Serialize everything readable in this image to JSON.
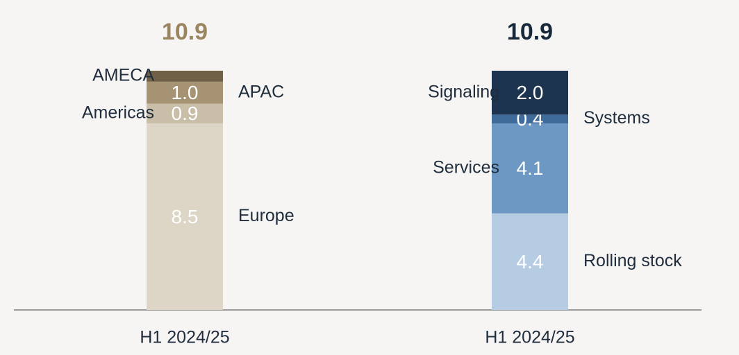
{
  "chart_data": [
    {
      "type": "bar",
      "stacked": true,
      "title": "10.9",
      "title_color": "#9b8561",
      "categories": [
        "H1 2024/25"
      ],
      "ylim": [
        0,
        10.9
      ],
      "series": [
        {
          "name": "Europe",
          "color": "#ddd5c6",
          "values": [
            8.5
          ],
          "value_labels": [
            "8.5"
          ]
        },
        {
          "name": "Americas",
          "color": "#c9bea7",
          "values": [
            0.9
          ],
          "value_labels": [
            "0.9"
          ]
        },
        {
          "name": "APAC",
          "color": "#a69373",
          "values": [
            1.0
          ],
          "value_labels": [
            "1.0"
          ]
        },
        {
          "name": "AMECA",
          "color": "#6f6047",
          "values": [
            0.5
          ]
        }
      ]
    },
    {
      "type": "bar",
      "stacked": true,
      "title": "10.9",
      "title_color": "#17283a",
      "categories": [
        "H1 2024/25"
      ],
      "ylim": [
        0,
        10.9
      ],
      "series": [
        {
          "name": "Rolling stock",
          "color": "#b6cce3",
          "values": [
            4.4
          ],
          "value_labels": [
            "4.4"
          ]
        },
        {
          "name": "Services",
          "color": "#6d98c4",
          "values": [
            4.1
          ],
          "value_labels": [
            "4.1"
          ]
        },
        {
          "name": "Systems",
          "color": "#3f6b9a",
          "values": [
            0.4
          ],
          "value_labels": [
            "0.4"
          ]
        },
        {
          "name": "Signaling",
          "color": "#1d3450",
          "values": [
            2.0
          ],
          "value_labels": [
            "2.0"
          ]
        }
      ]
    }
  ]
}
